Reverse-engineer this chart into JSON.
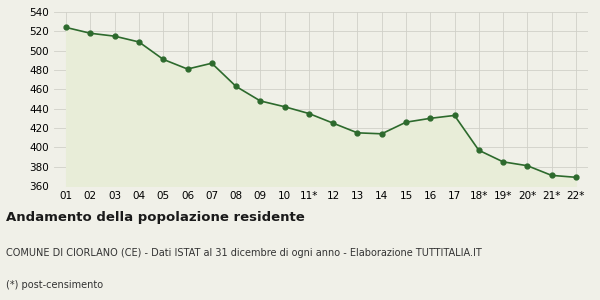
{
  "x_labels": [
    "01",
    "02",
    "03",
    "04",
    "05",
    "06",
    "07",
    "08",
    "09",
    "10",
    "11*",
    "12",
    "13",
    "14",
    "15",
    "16",
    "17",
    "18*",
    "19*",
    "20*",
    "21*",
    "22*"
  ],
  "y_values": [
    524,
    518,
    515,
    509,
    491,
    481,
    487,
    463,
    448,
    442,
    435,
    425,
    415,
    414,
    426,
    430,
    433,
    397,
    385,
    381,
    371,
    369
  ],
  "line_color": "#2d6a2d",
  "fill_color": "#e8edd8",
  "marker_color": "#2d6a2d",
  "bg_color": "#f0f0e8",
  "grid_color": "#d0d0c8",
  "ylim": [
    360,
    540
  ],
  "yticks": [
    360,
    380,
    400,
    420,
    440,
    460,
    480,
    500,
    520,
    540
  ],
  "title": "Andamento della popolazione residente",
  "subtitle": "COMUNE DI CIORLANO (CE) - Dati ISTAT al 31 dicembre di ogni anno - Elaborazione TUTTITALIA.IT",
  "footnote": "(*) post-censimento",
  "title_fontsize": 9.5,
  "subtitle_fontsize": 7,
  "footnote_fontsize": 7
}
